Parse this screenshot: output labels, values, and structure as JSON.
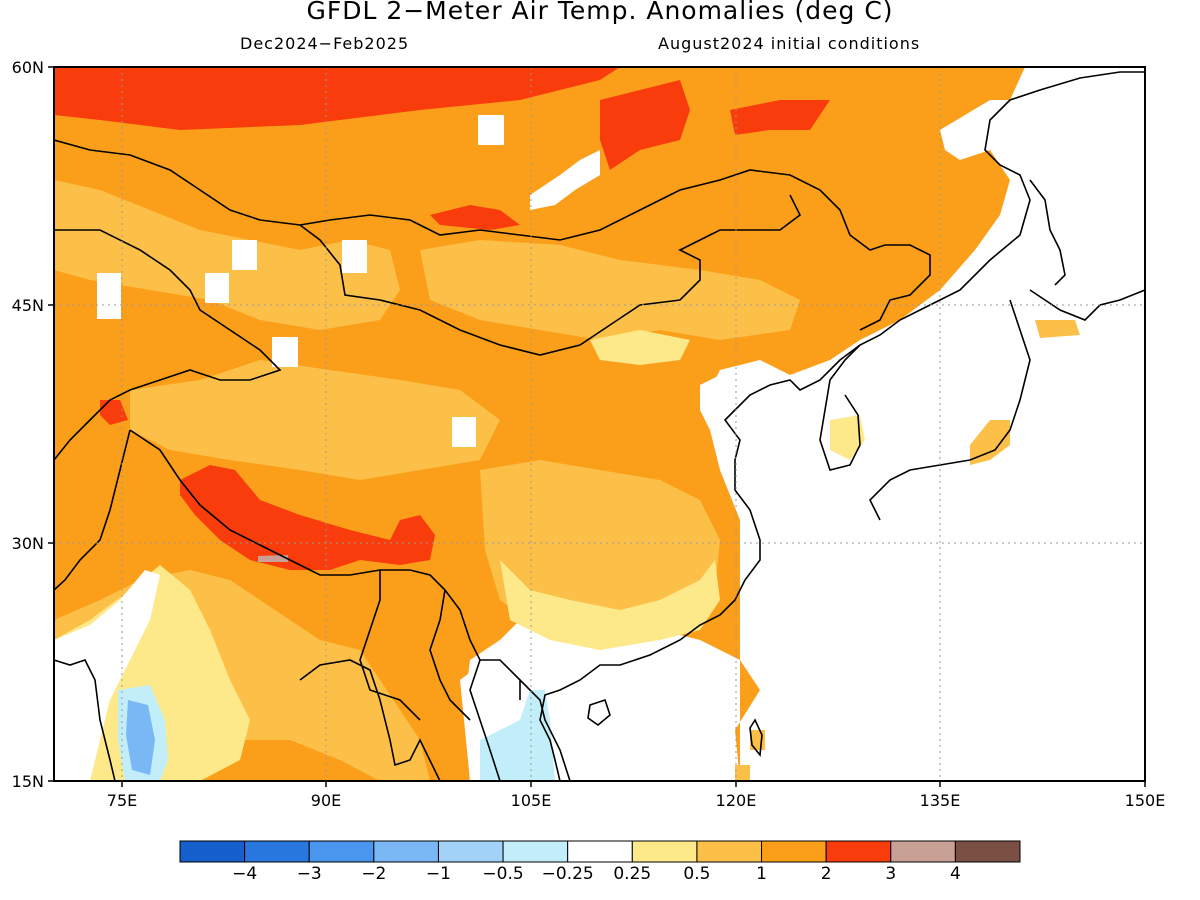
{
  "title": "GFDL 2−Meter Air Temp. Anomalies (deg C)",
  "subtitle_left": "Dec2024−Feb2025",
  "subtitle_right": "August2024 initial conditions",
  "lat_labels": [
    "60N",
    "45N",
    "30N",
    "15N"
  ],
  "lon_labels": [
    "75E",
    "90E",
    "105E",
    "120E",
    "135E",
    "150E"
  ],
  "colorbar": {
    "labels": [
      "−4",
      "−3",
      "−2",
      "−1",
      "−0.5",
      "−0.25",
      "0.25",
      "0.5",
      "1",
      "2",
      "3",
      "4"
    ],
    "colors": [
      "#1560cc",
      "#2878e0",
      "#4a95ee",
      "#7ab8f5",
      "#a2d2f8",
      "#c2eefa",
      "#ffffff",
      "#fde98a",
      "#fcc048",
      "#fb9f1a",
      "#f83c0c",
      "#c8a096",
      "#7a5044"
    ]
  }
}
